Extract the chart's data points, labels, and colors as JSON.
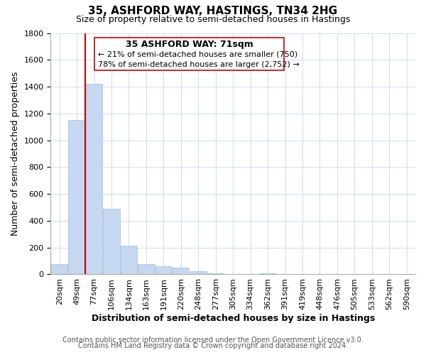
{
  "title": "35, ASHFORD WAY, HASTINGS, TN34 2HG",
  "subtitle": "Size of property relative to semi-detached houses in Hastings",
  "xlabel": "Distribution of semi-detached houses by size in Hastings",
  "ylabel": "Number of semi-detached properties",
  "bar_labels": [
    "20sqm",
    "49sqm",
    "77sqm",
    "106sqm",
    "134sqm",
    "163sqm",
    "191sqm",
    "220sqm",
    "248sqm",
    "277sqm",
    "305sqm",
    "334sqm",
    "362sqm",
    "391sqm",
    "419sqm",
    "448sqm",
    "476sqm",
    "505sqm",
    "533sqm",
    "562sqm",
    "590sqm"
  ],
  "bar_values": [
    75,
    1150,
    1420,
    490,
    215,
    75,
    60,
    48,
    25,
    10,
    0,
    0,
    10,
    0,
    0,
    0,
    0,
    0,
    0,
    0,
    0
  ],
  "bar_color": "#c5d8f0",
  "bar_edge_color": "#a0bce0",
  "property_line_bin_index": 1.5,
  "ylim": [
    0,
    1800
  ],
  "yticks": [
    0,
    200,
    400,
    600,
    800,
    1000,
    1200,
    1400,
    1600,
    1800
  ],
  "annotation_title": "35 ASHFORD WAY: 71sqm",
  "annotation_line1": "← 21% of semi-detached houses are smaller (750)",
  "annotation_line2": "78% of semi-detached houses are larger (2,752) →",
  "footer_line1": "Contains HM Land Registry data © Crown copyright and database right 2024.",
  "footer_line2": "Contains public sector information licensed under the Open Government Licence v3.0.",
  "title_fontsize": 11,
  "subtitle_fontsize": 9,
  "axis_label_fontsize": 9,
  "tick_fontsize": 8,
  "annotation_title_fontsize": 9,
  "annotation_text_fontsize": 8,
  "footer_fontsize": 7,
  "grid_color": "#c8d8ec",
  "line_color": "#cc0000",
  "box_color": "#cc0000",
  "background_color": "#ffffff"
}
